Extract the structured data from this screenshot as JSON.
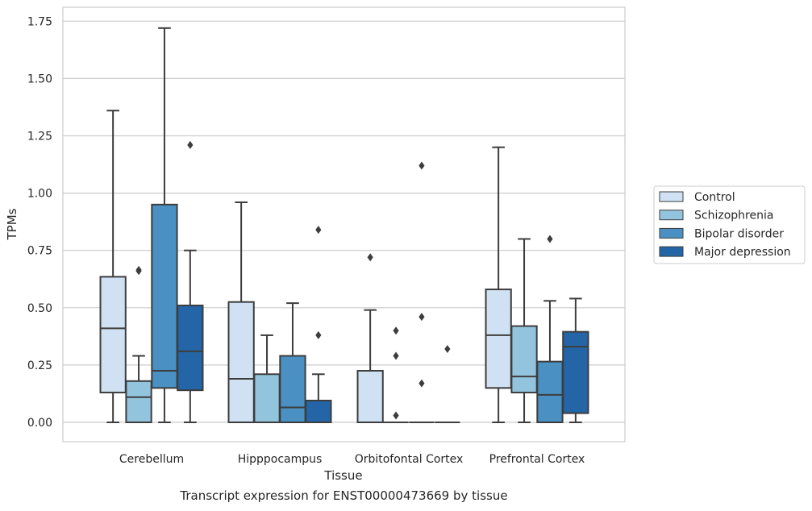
{
  "chart_data": {
    "type": "boxplot",
    "xlabel": "Tissue",
    "ylabel": "TPMs",
    "caption": "Transcript expression for ENST00000473669 by tissue",
    "ylim": [
      -0.08,
      1.81
    ],
    "yticks": [
      "0.00",
      "0.25",
      "0.50",
      "0.75",
      "1.00",
      "1.25",
      "1.50",
      "1.75"
    ],
    "ytick_values": [
      0,
      0.25,
      0.5,
      0.75,
      1.0,
      1.25,
      1.5,
      1.75
    ],
    "grid": true,
    "legend_position": "right",
    "categories": [
      "Cerebellum",
      "Hipppocampus",
      "Orbitofontal Cortex",
      "Prefrontal Cortex"
    ],
    "series": [
      {
        "name": "Control",
        "color": "#cfe1f2",
        "boxes": [
          {
            "whisker_low": 0,
            "q1": 0.13,
            "median": 0.41,
            "q3": 0.635,
            "whisker_high": 1.36,
            "outliers": []
          },
          {
            "whisker_low": 0,
            "q1": 0,
            "median": 0.19,
            "q3": 0.525,
            "whisker_high": 0.96,
            "outliers": []
          },
          {
            "whisker_low": 0,
            "q1": 0,
            "median": 0,
            "q3": 0.225,
            "whisker_high": 0.49,
            "outliers": [
              0.72
            ]
          },
          {
            "whisker_low": 0,
            "q1": 0.15,
            "median": 0.38,
            "q3": 0.58,
            "whisker_high": 1.2,
            "outliers": []
          }
        ]
      },
      {
        "name": "Schizophrenia",
        "color": "#93c4de",
        "boxes": [
          {
            "whisker_low": 0,
            "q1": 0,
            "median": 0.11,
            "q3": 0.18,
            "whisker_high": 0.29,
            "outliers": [
              0.665,
              0.66
            ]
          },
          {
            "whisker_low": 0,
            "q1": 0,
            "median": 0,
            "q3": 0.21,
            "whisker_high": 0.38,
            "outliers": []
          },
          {
            "whisker_low": 0,
            "q1": 0,
            "median": 0,
            "q3": 0,
            "whisker_high": 0,
            "outliers": [
              0.4,
              0.29,
              0.03
            ]
          },
          {
            "whisker_low": 0,
            "q1": 0.13,
            "median": 0.2,
            "q3": 0.42,
            "whisker_high": 0.8,
            "outliers": []
          }
        ]
      },
      {
        "name": "Bipolar disorder",
        "color": "#4a90c2",
        "boxes": [
          {
            "whisker_low": 0,
            "q1": 0.15,
            "median": 0.225,
            "q3": 0.95,
            "whisker_high": 1.72,
            "outliers": []
          },
          {
            "whisker_low": 0,
            "q1": 0,
            "median": 0.065,
            "q3": 0.29,
            "whisker_high": 0.52,
            "outliers": []
          },
          {
            "whisker_low": 0,
            "q1": 0,
            "median": 0,
            "q3": 0,
            "whisker_high": 0,
            "outliers": [
              1.12,
              0.46,
              0.17
            ]
          },
          {
            "whisker_low": 0,
            "q1": 0,
            "median": 0.12,
            "q3": 0.265,
            "whisker_high": 0.53,
            "outliers": [
              0.8
            ]
          }
        ]
      },
      {
        "name": "Major depression",
        "color": "#2365a6",
        "boxes": [
          {
            "whisker_low": 0,
            "q1": 0.14,
            "median": 0.31,
            "q3": 0.51,
            "whisker_high": 0.75,
            "outliers": [
              1.21
            ]
          },
          {
            "whisker_low": 0,
            "q1": 0,
            "median": 0,
            "q3": 0.095,
            "whisker_high": 0.21,
            "outliers": [
              0.84,
              0.38
            ]
          },
          {
            "whisker_low": 0,
            "q1": 0,
            "median": 0,
            "q3": 0,
            "whisker_high": 0,
            "outliers": [
              0.32
            ]
          },
          {
            "whisker_low": 0,
            "q1": 0.04,
            "median": 0.33,
            "q3": 0.395,
            "whisker_high": 0.54,
            "outliers": []
          }
        ]
      }
    ]
  }
}
